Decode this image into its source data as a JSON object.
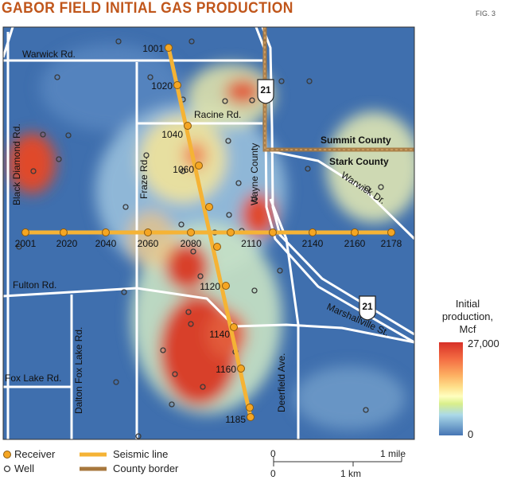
{
  "title": "GABOR FIELD INITIAL GAS PRODUCTION",
  "figure_label": "FIG. 3",
  "roads": {
    "warwick_rd": "Warwick Rd.",
    "racine_rd": "Racine Rd.",
    "black_diamond_rd": "Black Diamond Rd.",
    "fraze_rd": "Fraze Rd.",
    "wayne_county": "Wayne County",
    "fulton_rd": "Fulton Rd.",
    "dalton_fox_lake_rd": "Dalton Fox Lake Rd.",
    "fox_lake_rd": "Fox Lake Rd.",
    "deerfield_ave": "Deerfield Ave.",
    "marshallville_st": "Marshallville St.",
    "warwick_dr": "Warwick Dr.",
    "summit_county": "Summit County",
    "stark_county": "Stark County",
    "route_21_top": "21",
    "route_21_bottom": "21"
  },
  "receiver_labels": {
    "ns": [
      "1001",
      "1020",
      "1040",
      "1060",
      "1120",
      "1140",
      "1160",
      "1185"
    ],
    "ew": [
      "2001",
      "2020",
      "2040",
      "2060",
      "2080",
      "2110",
      "2140",
      "2160",
      "2178"
    ]
  },
  "colorbar": {
    "title_line1": "Initial",
    "title_line2": "production,",
    "title_line3": "Mcf",
    "max_label": "27,000",
    "min_label": "0",
    "colors": [
      "#d73027",
      "#fdae61",
      "#ffffbf",
      "#abd9e9",
      "#4575b4"
    ]
  },
  "legend": {
    "receiver": "Receiver",
    "well": "Well",
    "seismic_line": "Seismic line",
    "county_border": "County border"
  },
  "scale": {
    "mile_zero": "0",
    "mile_label": "1 mile",
    "km_zero": "0",
    "km_label": "1 km"
  },
  "colors": {
    "title": "#c0561b",
    "seismic": "#f5b335",
    "county_border": "#b07a3a",
    "road": "#ffffff"
  }
}
